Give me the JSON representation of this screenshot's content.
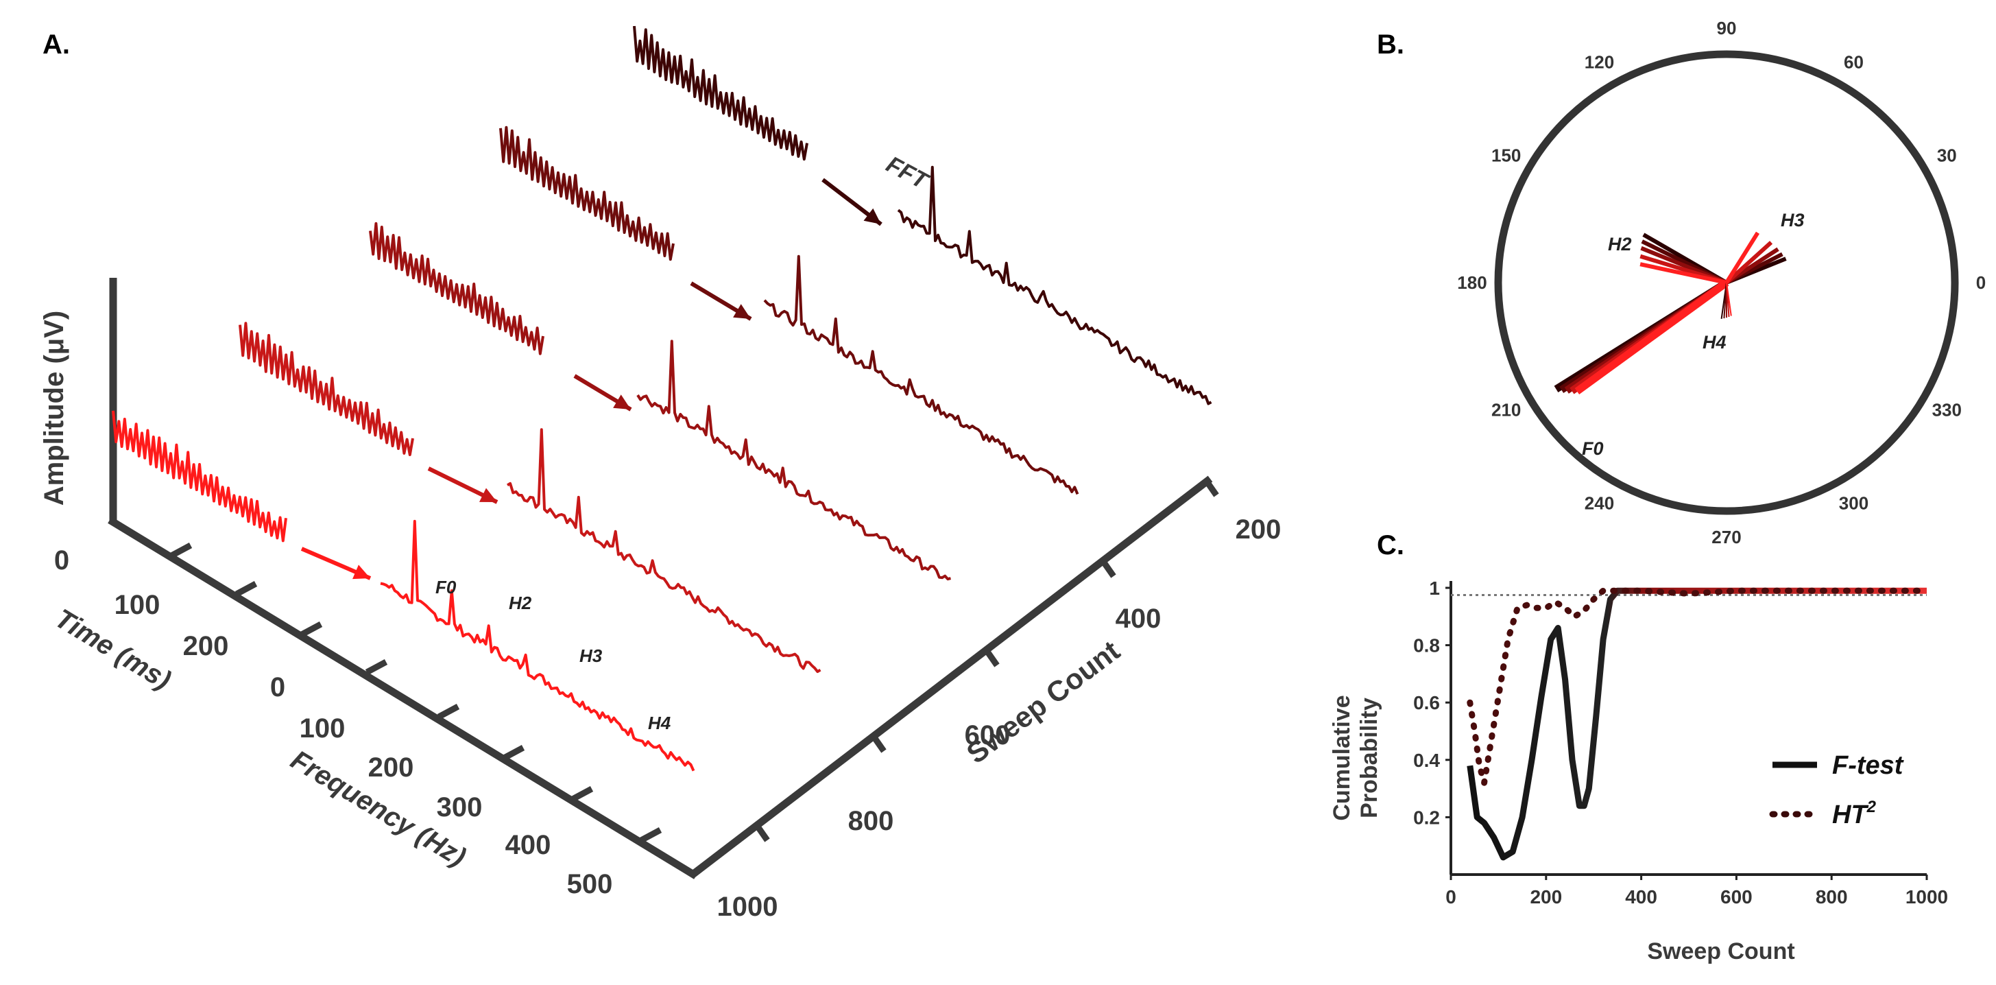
{
  "chart_data": [
    {
      "panel_label": "A.",
      "type": "line",
      "description_axes": {
        "zlabel": "Amplitude (μV)",
        "time_label": "Time (ms)",
        "frequency_label": "Frequency (Hz)",
        "sweep_label": "Sweep Count"
      },
      "time_ticks": [
        "0",
        "100",
        "200"
      ],
      "frequency_ticks": [
        "0",
        "100",
        "200",
        "300",
        "400",
        "500"
      ],
      "sweep_ticks": [
        "200",
        "400",
        "600",
        "800",
        "1000"
      ],
      "fft_label": "FFT",
      "harmonic_labels": [
        "F0",
        "H2",
        "H3",
        "H4"
      ],
      "peak_frequencies_hz": [
        100,
        200,
        300,
        400
      ],
      "series": [
        {
          "name": "sweep-1000",
          "sweep": 1000,
          "color": "#ff1a1a",
          "peak_heights": [
            1.0,
            0.45,
            0.3,
            0.22
          ]
        },
        {
          "name": "sweep-800",
          "sweep": 800,
          "color": "#c81818",
          "peak_heights": [
            0.95,
            0.42,
            0.28,
            0.2
          ]
        },
        {
          "name": "sweep-600",
          "sweep": 600,
          "color": "#9c1212",
          "peak_heights": [
            0.9,
            0.4,
            0.27,
            0.2
          ]
        },
        {
          "name": "sweep-400",
          "sweep": 400,
          "color": "#6e0c0c",
          "peak_heights": [
            0.85,
            0.38,
            0.26,
            0.19
          ]
        },
        {
          "name": "sweep-200",
          "sweep": 200,
          "color": "#3d0505",
          "peak_heights": [
            0.85,
            0.36,
            0.25,
            0.18
          ]
        }
      ]
    },
    {
      "panel_label": "B.",
      "type": "polar",
      "angle_ticks": [
        "0",
        "30",
        "60",
        "90",
        "120",
        "150",
        "180",
        "210",
        "240",
        "270",
        "300",
        "330"
      ],
      "angle_values": [
        0,
        30,
        60,
        90,
        120,
        150,
        180,
        210,
        240,
        270,
        300,
        330
      ],
      "harmonic_labels": [
        "F0",
        "H2",
        "H3",
        "H4"
      ],
      "vectors": [
        {
          "harmonic": "F0",
          "angles_deg": [
            212,
            213,
            214,
            215,
            216
          ],
          "length": 0.88
        },
        {
          "harmonic": "H2",
          "angles_deg": [
            150,
            154,
            158,
            163,
            168
          ],
          "length": 0.42
        },
        {
          "harmonic": "H3",
          "angles_deg": [
            22,
            27,
            33,
            42,
            58
          ],
          "length": 0.28
        },
        {
          "harmonic": "H4",
          "angles_deg": [
            262,
            266,
            270,
            274,
            278
          ],
          "length": 0.16
        }
      ]
    },
    {
      "panel_label": "C.",
      "type": "line",
      "xlabel": "Sweep Count",
      "ylabel_line1": "Cumulative",
      "ylabel_line2": "Probability",
      "xlim": [
        0,
        1000
      ],
      "ylim": [
        0,
        1
      ],
      "x_ticks": [
        "0",
        "200",
        "400",
        "600",
        "800",
        "1000"
      ],
      "x_tick_values": [
        0,
        200,
        400,
        600,
        800,
        1000
      ],
      "y_ticks": [
        "0.2",
        "0.4",
        "0.6",
        "0.8",
        "1"
      ],
      "y_tick_values": [
        0.2,
        0.4,
        0.6,
        0.8,
        1.0
      ],
      "threshold": 0.975,
      "legend": {
        "ftest": "F-test",
        "ht2_base": "HT",
        "ht2_sup": "2"
      },
      "series": [
        {
          "name": "F-test",
          "style": "solid",
          "x": [
            40,
            55,
            70,
            90,
            110,
            130,
            150,
            170,
            190,
            210,
            225,
            240,
            255,
            270,
            280,
            290,
            305,
            320,
            335,
            350,
            370,
            400,
            500,
            600,
            700,
            800,
            900,
            1000
          ],
          "y": [
            0.38,
            0.2,
            0.18,
            0.13,
            0.06,
            0.08,
            0.2,
            0.4,
            0.62,
            0.82,
            0.86,
            0.68,
            0.4,
            0.24,
            0.24,
            0.3,
            0.55,
            0.82,
            0.96,
            0.99,
            0.99,
            0.99,
            0.99,
            0.99,
            0.99,
            0.99,
            0.99,
            0.99
          ]
        },
        {
          "name": "HT2",
          "style": "dotted",
          "x": [
            40,
            50,
            60,
            70,
            80,
            100,
            120,
            140,
            160,
            180,
            200,
            220,
            240,
            260,
            280,
            300,
            320,
            340,
            360,
            400,
            500,
            600,
            700,
            800,
            900,
            1000
          ],
          "y": [
            0.6,
            0.5,
            0.38,
            0.32,
            0.42,
            0.62,
            0.82,
            0.93,
            0.94,
            0.93,
            0.93,
            0.95,
            0.93,
            0.9,
            0.92,
            0.96,
            0.99,
            0.99,
            0.99,
            0.99,
            0.98,
            0.99,
            0.99,
            0.99,
            0.99,
            0.99
          ]
        }
      ]
    }
  ]
}
